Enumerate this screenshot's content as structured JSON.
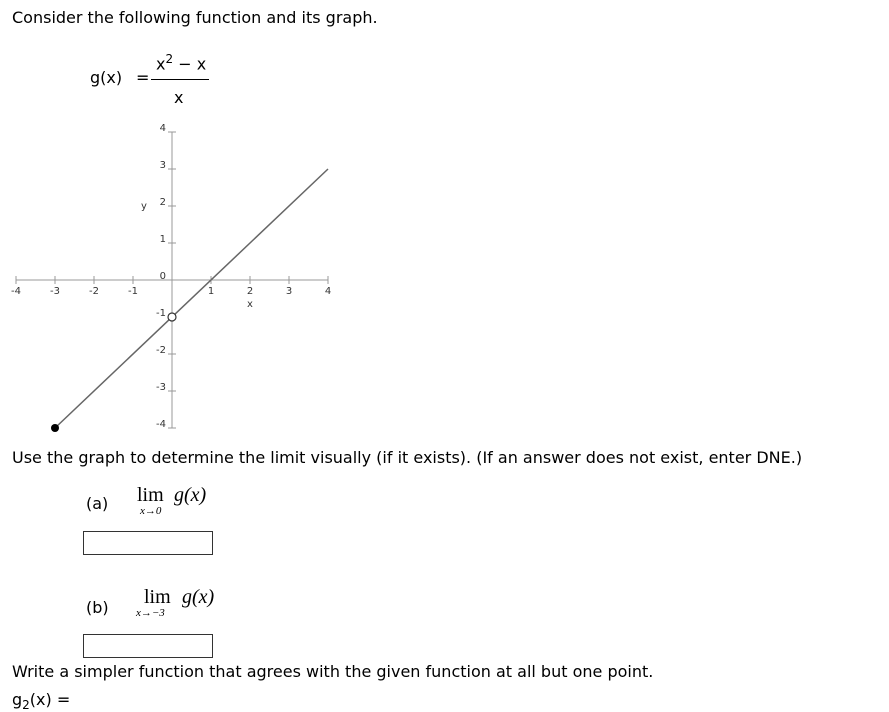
{
  "intro": "Consider the following function and its graph.",
  "function": {
    "name": "g(x)",
    "equals": "=",
    "num_base": "x",
    "num_exp": "2",
    "num_rest": " − x",
    "den": "x"
  },
  "chart_data": {
    "type": "line",
    "xlabel": "x",
    "ylabel": "y",
    "xlim": [
      -4,
      4
    ],
    "ylim": [
      -4,
      4
    ],
    "xticks": [
      -4,
      -3,
      -2,
      -1,
      1,
      2,
      3,
      4
    ],
    "yticks": [
      -4,
      -3,
      -2,
      -1,
      0,
      1,
      2,
      3,
      4
    ],
    "series": [
      {
        "color": "#666666",
        "x": [
          -3,
          4
        ],
        "values": [
          -4,
          3
        ]
      }
    ],
    "closed_point": {
      "x": -3,
      "y": -4
    },
    "open_point": {
      "x": 0,
      "y": -1
    }
  },
  "instruction": "Use the graph to determine the limit visually (if it exists). (If an answer does not exist, enter DNE.)",
  "parts": [
    {
      "label": "(a)",
      "lim": "lim",
      "sub": "x→0",
      "expr": "g(x)"
    },
    {
      "label": "(b)",
      "lim": "lim",
      "sub": "x→−3",
      "expr": "g(x)"
    }
  ],
  "simpler": {
    "prompt": "Write a simpler function that agrees with the given function at all but one point.",
    "name": "g",
    "sub": "2",
    "rest": "(x) ="
  }
}
